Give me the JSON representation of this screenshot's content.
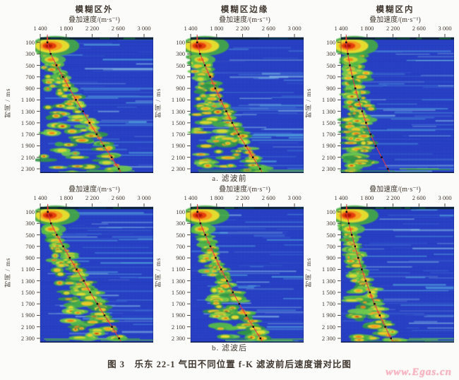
{
  "figure": {
    "caption": "图 3　乐东 22-1 气田不同位置 f-K 滤波前后速度谱对比图",
    "row_captions": [
      "a. 滤波前",
      "b. 滤波后"
    ],
    "column_titles": [
      "模糊区外",
      "模糊区边缘",
      "模糊区内"
    ],
    "watermark": "www.Egas.cn"
  },
  "axes": {
    "xlabel": "叠加速度/(m·s⁻¹)",
    "ylabel": "时间 / ms",
    "x_tick_labels": [
      "1 400",
      "1 800",
      "2 200",
      "2 600",
      "3 000"
    ],
    "x_tick_values": [
      1400,
      1800,
      2200,
      2600,
      3000
    ],
    "y_tick_labels": [
      "100",
      "300",
      "500",
      "700",
      "900",
      "1 100",
      "1 300",
      "1 500",
      "1 700",
      "1 900",
      "2 100",
      "2 300"
    ],
    "y_tick_values": [
      100,
      300,
      500,
      700,
      900,
      1100,
      1300,
      1500,
      1700,
      1900,
      2100,
      2300
    ],
    "x_range": [
      1400,
      3130
    ],
    "y_range": [
      0,
      2400
    ]
  },
  "colors": {
    "panel_background": "#2840c4",
    "streak_cyans": [
      "#3f6ad2",
      "#4f9ade",
      "#62cbe8",
      "#a5e7f0"
    ],
    "energy_greens": [
      "#2f9447",
      "#43ab44",
      "#57bd47",
      "#6bc94d"
    ],
    "energy_yellows": [
      "#ddd92f",
      "#ecdf2d",
      "#f2ca25"
    ],
    "energy_oranges": [
      "#f59d1d",
      "#ef7c15"
    ],
    "energy_reds": [
      "#e33911",
      "#c71f06"
    ],
    "pick_line": "#e13848",
    "marker": "#141414",
    "text": "#403830",
    "watermark_pink": "#f3a8b8"
  },
  "chart_data": [
    {
      "id": "outside-before",
      "type": "heatmap",
      "position": "模糊区外",
      "stage": "a. 滤波前",
      "xlabel": "叠加速度/(m·s⁻¹)",
      "ylabel": "时间/ms",
      "colorscale": [
        "blue",
        "cyan",
        "green",
        "yellow",
        "orange",
        "red"
      ],
      "pick_times_ms": [
        100,
        300,
        500,
        700,
        900,
        1100,
        1300,
        1500,
        1700,
        1900,
        2100,
        2300
      ],
      "pick_velocities_ms": [
        1510,
        1560,
        1650,
        1750,
        1850,
        1950,
        2060,
        2160,
        2270,
        2380,
        2500,
        2610
      ],
      "energy": {
        "mode": "line",
        "spread": 1.0,
        "density": 1.0,
        "seed": 3
      }
    },
    {
      "id": "edge-before",
      "type": "heatmap",
      "position": "模糊区边缘",
      "stage": "a. 滤波前",
      "xlabel": "叠加速度/(m·s⁻¹)",
      "ylabel": "时间/ms",
      "colorscale": [
        "blue",
        "cyan",
        "green",
        "yellow",
        "orange",
        "red"
      ],
      "pick_times_ms": [
        100,
        300,
        500,
        700,
        900,
        1100,
        1300,
        1500,
        1700,
        1900,
        2100,
        2300
      ],
      "pick_velocities_ms": [
        1500,
        1545,
        1620,
        1700,
        1780,
        1860,
        1950,
        2040,
        2140,
        2250,
        2360,
        2470
      ],
      "energy": {
        "mode": "line",
        "spread": 0.95,
        "density": 1.05,
        "seed": 7
      }
    },
    {
      "id": "inside-before",
      "type": "heatmap",
      "position": "模糊区内",
      "stage": "a. 滤波前",
      "xlabel": "叠加速度/(m·s⁻¹)",
      "ylabel": "时间/ms",
      "colorscale": [
        "blue",
        "cyan",
        "green",
        "yellow",
        "orange",
        "red"
      ],
      "pick_times_ms": [
        100,
        300,
        500,
        700,
        900,
        1100,
        1300,
        1500,
        1700,
        1900,
        2100,
        2300
      ],
      "pick_velocities_ms": [
        1480,
        1505,
        1535,
        1575,
        1620,
        1670,
        1725,
        1785,
        1855,
        1935,
        2025,
        2120
      ],
      "energy": {
        "mode": "band",
        "band": 1495,
        "bandSpread": 240,
        "spread": 0.5,
        "density": 1.2,
        "seed": 13
      }
    },
    {
      "id": "outside-after",
      "type": "heatmap",
      "position": "模糊区外",
      "stage": "b. 滤波后",
      "xlabel": "叠加速度/(m·s⁻¹)",
      "ylabel": "时间/ms",
      "colorscale": [
        "blue",
        "cyan",
        "green",
        "yellow",
        "orange",
        "red"
      ],
      "pick_times_ms": [
        100,
        300,
        500,
        700,
        900,
        1100,
        1300,
        1500,
        1700,
        1900,
        2100,
        2300
      ],
      "pick_velocities_ms": [
        1515,
        1565,
        1655,
        1755,
        1855,
        1960,
        2070,
        2170,
        2280,
        2390,
        2505,
        2615
      ],
      "energy": {
        "mode": "line",
        "spread": 0.62,
        "density": 0.95,
        "seed": 21
      }
    },
    {
      "id": "edge-after",
      "type": "heatmap",
      "position": "模糊区边缘",
      "stage": "b. 滤波后",
      "xlabel": "叠加速度/(m·s⁻¹)",
      "ylabel": "时间/ms",
      "colorscale": [
        "blue",
        "cyan",
        "green",
        "yellow",
        "orange",
        "red"
      ],
      "pick_times_ms": [
        100,
        300,
        500,
        700,
        900,
        1100,
        1300,
        1500,
        1700,
        1900,
        2100,
        2300
      ],
      "pick_velocities_ms": [
        1505,
        1550,
        1625,
        1705,
        1785,
        1870,
        1960,
        2050,
        2150,
        2255,
        2365,
        2475
      ],
      "energy": {
        "mode": "line",
        "spread": 0.6,
        "density": 1.0,
        "seed": 29
      }
    },
    {
      "id": "inside-after",
      "type": "heatmap",
      "position": "模糊区内",
      "stage": "b. 滤波后",
      "xlabel": "叠加速度/(m·s⁻¹)",
      "ylabel": "时间/ms",
      "colorscale": [
        "blue",
        "cyan",
        "green",
        "yellow",
        "orange",
        "red"
      ],
      "pick_times_ms": [
        100,
        300,
        500,
        700,
        900,
        1100,
        1300,
        1500,
        1700,
        1900,
        2100,
        2300
      ],
      "pick_velocities_ms": [
        1485,
        1520,
        1565,
        1615,
        1665,
        1720,
        1780,
        1845,
        1915,
        1995,
        2080,
        2170
      ],
      "energy": {
        "mode": "line",
        "spread": 0.8,
        "density": 1.15,
        "seed": 37
      }
    }
  ]
}
